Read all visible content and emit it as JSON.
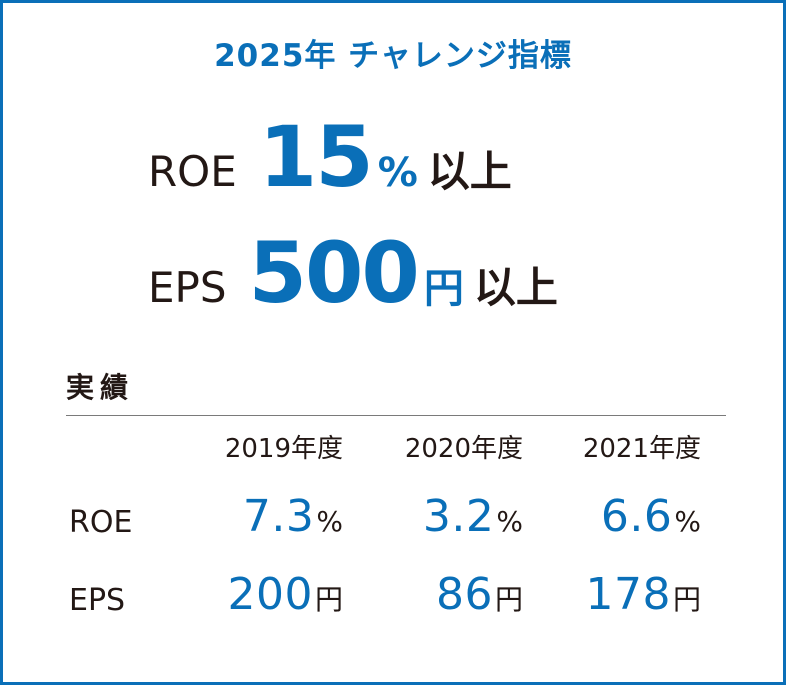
{
  "title": "2025年 チャレンジ指標",
  "goals": [
    {
      "metric": "ROE",
      "value": "15",
      "unit": "%",
      "suffix": "以上"
    },
    {
      "metric": "EPS",
      "value": "500",
      "unit": "円",
      "suffix": "以上"
    }
  ],
  "results": {
    "label": "実績",
    "years": [
      "2019年度",
      "2020年度",
      "2021年度"
    ],
    "rows": [
      {
        "label": "ROE",
        "cells": [
          {
            "value": "7.3",
            "unit": "%"
          },
          {
            "value": "3.2",
            "unit": "%"
          },
          {
            "value": "6.6",
            "unit": "%"
          }
        ]
      },
      {
        "label": "EPS",
        "cells": [
          {
            "value": "200",
            "unit": "円"
          },
          {
            "value": "86",
            "unit": "円"
          },
          {
            "value": "178",
            "unit": "円"
          }
        ]
      }
    ]
  },
  "colors": {
    "accent": "#0a6fb8",
    "text": "#231815",
    "border": "#0a6fb8"
  }
}
